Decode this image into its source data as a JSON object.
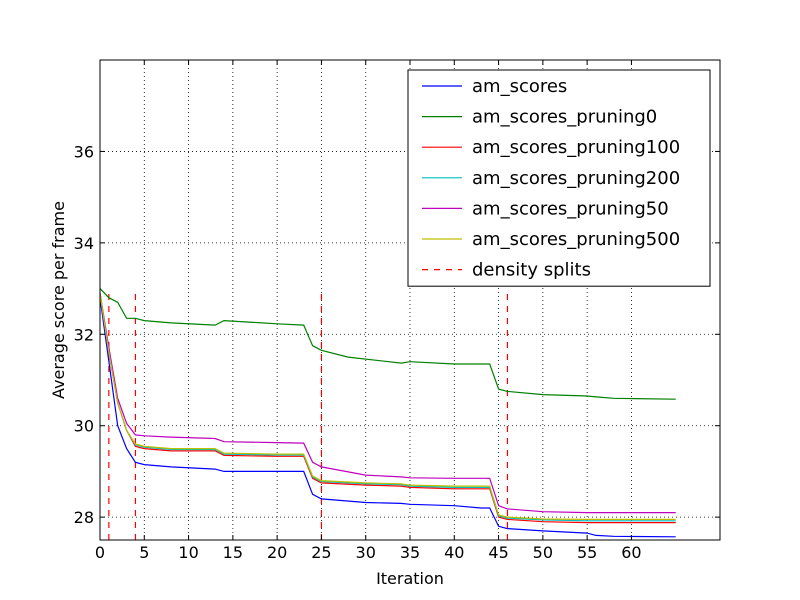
{
  "chart_data": {
    "type": "line",
    "title": "",
    "xlabel": "Iteration",
    "ylabel": "Average score per frame",
    "xlim": [
      0,
      70
    ],
    "ylim": [
      27.5,
      38
    ],
    "xticks": [
      0,
      5,
      10,
      15,
      20,
      25,
      30,
      35,
      40,
      45,
      50,
      55,
      60
    ],
    "yticks": [
      28,
      30,
      32,
      34,
      36
    ],
    "grid": true,
    "legend_position": "top-right",
    "series": [
      {
        "name": "am_scores",
        "color": "#0000ff",
        "x": [
          0,
          1,
          2,
          3,
          4,
          5,
          8,
          13,
          14,
          20,
          23,
          24,
          25,
          30,
          34,
          35,
          40,
          43,
          44,
          45,
          46,
          50,
          55,
          56,
          58,
          65
        ],
        "y": [
          32.8,
          31.4,
          30.0,
          29.5,
          29.2,
          29.15,
          29.1,
          29.05,
          29.0,
          29.0,
          29.0,
          28.5,
          28.4,
          28.32,
          28.3,
          28.28,
          28.25,
          28.2,
          28.2,
          27.8,
          27.75,
          27.7,
          27.65,
          27.6,
          27.58,
          27.57
        ]
      },
      {
        "name": "am_scores_pruning0",
        "color": "#008000",
        "x": [
          0,
          1,
          2,
          3,
          4,
          5,
          8,
          13,
          14,
          20,
          23,
          24,
          25,
          28,
          34,
          35,
          40,
          44,
          45,
          46,
          50,
          55,
          56,
          58,
          65
        ],
        "y": [
          33.0,
          32.8,
          32.7,
          32.35,
          32.35,
          32.3,
          32.25,
          32.2,
          32.3,
          32.23,
          32.2,
          31.75,
          31.65,
          31.5,
          31.37,
          31.4,
          31.35,
          31.35,
          30.8,
          30.75,
          30.68,
          30.65,
          30.63,
          30.6,
          30.58
        ]
      },
      {
        "name": "am_scores_pruning100",
        "color": "#ff0000",
        "x": [
          0,
          1,
          2,
          3,
          4,
          5,
          8,
          13,
          14,
          20,
          23,
          24,
          25,
          30,
          34,
          35,
          40,
          44,
          45,
          46,
          50,
          55,
          56,
          58,
          65
        ],
        "y": [
          32.9,
          31.6,
          30.5,
          29.9,
          29.55,
          29.5,
          29.45,
          29.45,
          29.35,
          29.33,
          29.33,
          28.85,
          28.75,
          28.7,
          28.68,
          28.65,
          28.62,
          28.62,
          28.0,
          27.95,
          27.9,
          27.88,
          27.88,
          27.88,
          27.88
        ]
      },
      {
        "name": "am_scores_pruning200",
        "color": "#00bfbf",
        "x": [
          0,
          1,
          2,
          3,
          4,
          5,
          8,
          13,
          14,
          20,
          23,
          24,
          25,
          30,
          34,
          35,
          40,
          44,
          45,
          46,
          50,
          55,
          56,
          58,
          65
        ],
        "y": [
          32.9,
          31.6,
          30.5,
          29.9,
          29.58,
          29.53,
          29.48,
          29.48,
          29.38,
          29.36,
          29.36,
          28.88,
          28.78,
          28.73,
          28.71,
          28.68,
          28.65,
          28.65,
          28.03,
          27.98,
          27.94,
          27.92,
          27.92,
          27.92,
          27.92
        ]
      },
      {
        "name": "am_scores_pruning50",
        "color": "#bf00bf",
        "x": [
          0,
          1,
          2,
          3,
          4,
          5,
          8,
          13,
          14,
          20,
          23,
          24,
          25,
          30,
          34,
          35,
          40,
          44,
          45,
          46,
          50,
          55,
          56,
          58,
          65
        ],
        "y": [
          32.9,
          31.7,
          30.6,
          30.05,
          29.8,
          29.78,
          29.75,
          29.72,
          29.65,
          29.63,
          29.62,
          29.2,
          29.1,
          28.92,
          28.88,
          28.86,
          28.85,
          28.85,
          28.25,
          28.18,
          28.12,
          28.1,
          28.1,
          28.1,
          28.1
        ]
      },
      {
        "name": "am_scores_pruning500",
        "color": "#bfbf00",
        "x": [
          0,
          1,
          2,
          3,
          4,
          5,
          8,
          13,
          14,
          20,
          23,
          24,
          25,
          30,
          34,
          35,
          40,
          44,
          45,
          46,
          50,
          55,
          56,
          58,
          65
        ],
        "y": [
          32.9,
          31.6,
          30.5,
          29.9,
          29.6,
          29.55,
          29.5,
          29.5,
          29.4,
          29.38,
          29.38,
          28.9,
          28.8,
          28.75,
          28.73,
          28.7,
          28.68,
          28.68,
          28.05,
          28.0,
          27.96,
          27.95,
          27.95,
          27.95,
          27.95
        ]
      }
    ],
    "splits": {
      "name": "density splits",
      "color": "#ff0000",
      "x": [
        1,
        4,
        25,
        46
      ],
      "y_from": 27.5,
      "y_to": 33.0
    }
  }
}
